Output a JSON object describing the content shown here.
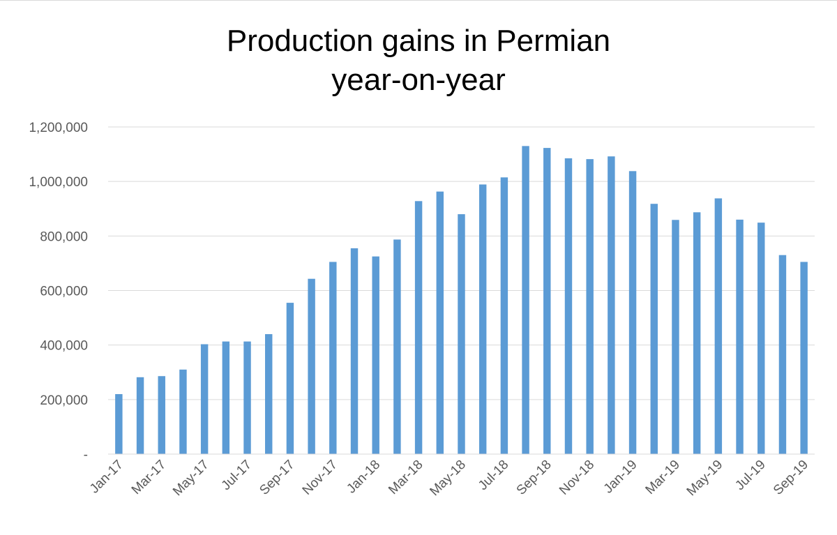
{
  "chart_data": {
    "type": "bar",
    "title_lines": [
      "Production gains in Permian",
      "year-on-year"
    ],
    "xlabel": "",
    "ylabel": "",
    "ylim": [
      0,
      1200000
    ],
    "yticks": [
      0,
      200000,
      400000,
      600000,
      800000,
      1000000,
      1200000
    ],
    "ytick_labels": [
      "-",
      "200,000",
      "400,000",
      "600,000",
      "800,000",
      "1,000,000",
      "1,200,000"
    ],
    "grid": true,
    "legend": "none",
    "bar_color": "#5b9bd5",
    "categories": [
      "Jan-17",
      "Feb-17",
      "Mar-17",
      "Apr-17",
      "May-17",
      "Jun-17",
      "Jul-17",
      "Aug-17",
      "Sep-17",
      "Oct-17",
      "Nov-17",
      "Dec-17",
      "Jan-18",
      "Feb-18",
      "Mar-18",
      "Apr-18",
      "May-18",
      "Jun-18",
      "Jul-18",
      "Aug-18",
      "Sep-18",
      "Oct-18",
      "Nov-18",
      "Dec-18",
      "Jan-19",
      "Feb-19",
      "Mar-19",
      "Apr-19",
      "May-19",
      "Jun-19",
      "Jul-19",
      "Aug-19",
      "Sep-19"
    ],
    "shown_tick_labels": [
      "Jan-17",
      "Mar-17",
      "May-17",
      "Jul-17",
      "Sep-17",
      "Nov-17",
      "Jan-18",
      "Mar-18",
      "May-18",
      "Jul-18",
      "Sep-18",
      "Nov-18",
      "Jan-19",
      "Mar-19",
      "May-19",
      "Jul-19",
      "Sep-19"
    ],
    "values": [
      220000,
      282000,
      286000,
      310000,
      403000,
      413000,
      413000,
      440000,
      555000,
      643000,
      705000,
      755000,
      725000,
      787000,
      928000,
      963000,
      880000,
      989000,
      1015000,
      1130000,
      1123000,
      1085000,
      1082000,
      1092000,
      1038000,
      918000,
      859000,
      887000,
      938000,
      860000,
      849000,
      730000,
      705000
    ]
  }
}
